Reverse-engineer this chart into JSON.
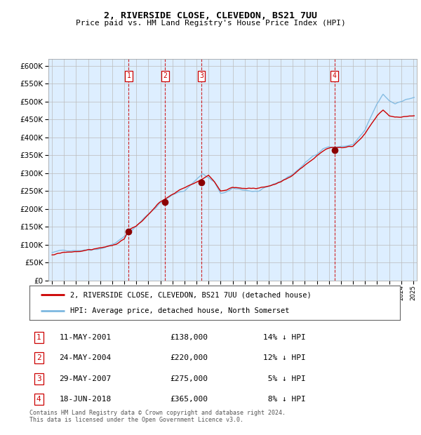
{
  "title": "2, RIVERSIDE CLOSE, CLEVEDON, BS21 7UU",
  "subtitle": "Price paid vs. HM Land Registry's House Price Index (HPI)",
  "footnote": "Contains HM Land Registry data © Crown copyright and database right 2024.\nThis data is licensed under the Open Government Licence v3.0.",
  "legend_line1": "2, RIVERSIDE CLOSE, CLEVEDON, BS21 7UU (detached house)",
  "legend_line2": "HPI: Average price, detached house, North Somerset",
  "transactions": [
    {
      "num": 1,
      "date": "11-MAY-2001",
      "price": 138000,
      "pct": "14%",
      "year": 2001.37
    },
    {
      "num": 2,
      "date": "24-MAY-2004",
      "price": 220000,
      "pct": "12%",
      "year": 2004.39
    },
    {
      "num": 3,
      "date": "29-MAY-2007",
      "price": 275000,
      "pct": "5%",
      "year": 2007.41
    },
    {
      "num": 4,
      "date": "18-JUN-2018",
      "price": 365000,
      "pct": "8%",
      "year": 2018.46
    }
  ],
  "hpi_color": "#7db8e0",
  "price_color": "#cc0000",
  "marker_color": "#8b0000",
  "dashed_color": "#cc0000",
  "bg_color": "#ddeeff",
  "grid_color": "#bbbbbb",
  "box_color": "#cc0000",
  "ylim": [
    0,
    620000
  ],
  "yticks": [
    0,
    50000,
    100000,
    150000,
    200000,
    250000,
    300000,
    350000,
    400000,
    450000,
    500000,
    550000,
    600000
  ],
  "xlim_start": 1994.7,
  "xlim_end": 2025.3,
  "marker_prices": [
    138000,
    220000,
    275000,
    365000
  ],
  "row_texts": [
    [
      1,
      "11-MAY-2001",
      "£138,000",
      "14% ↓ HPI"
    ],
    [
      2,
      "24-MAY-2004",
      "£220,000",
      "12% ↓ HPI"
    ],
    [
      3,
      "29-MAY-2007",
      "£275,000",
      " 5% ↓ HPI"
    ],
    [
      4,
      "18-JUN-2018",
      "£365,000",
      " 8% ↓ HPI"
    ]
  ]
}
